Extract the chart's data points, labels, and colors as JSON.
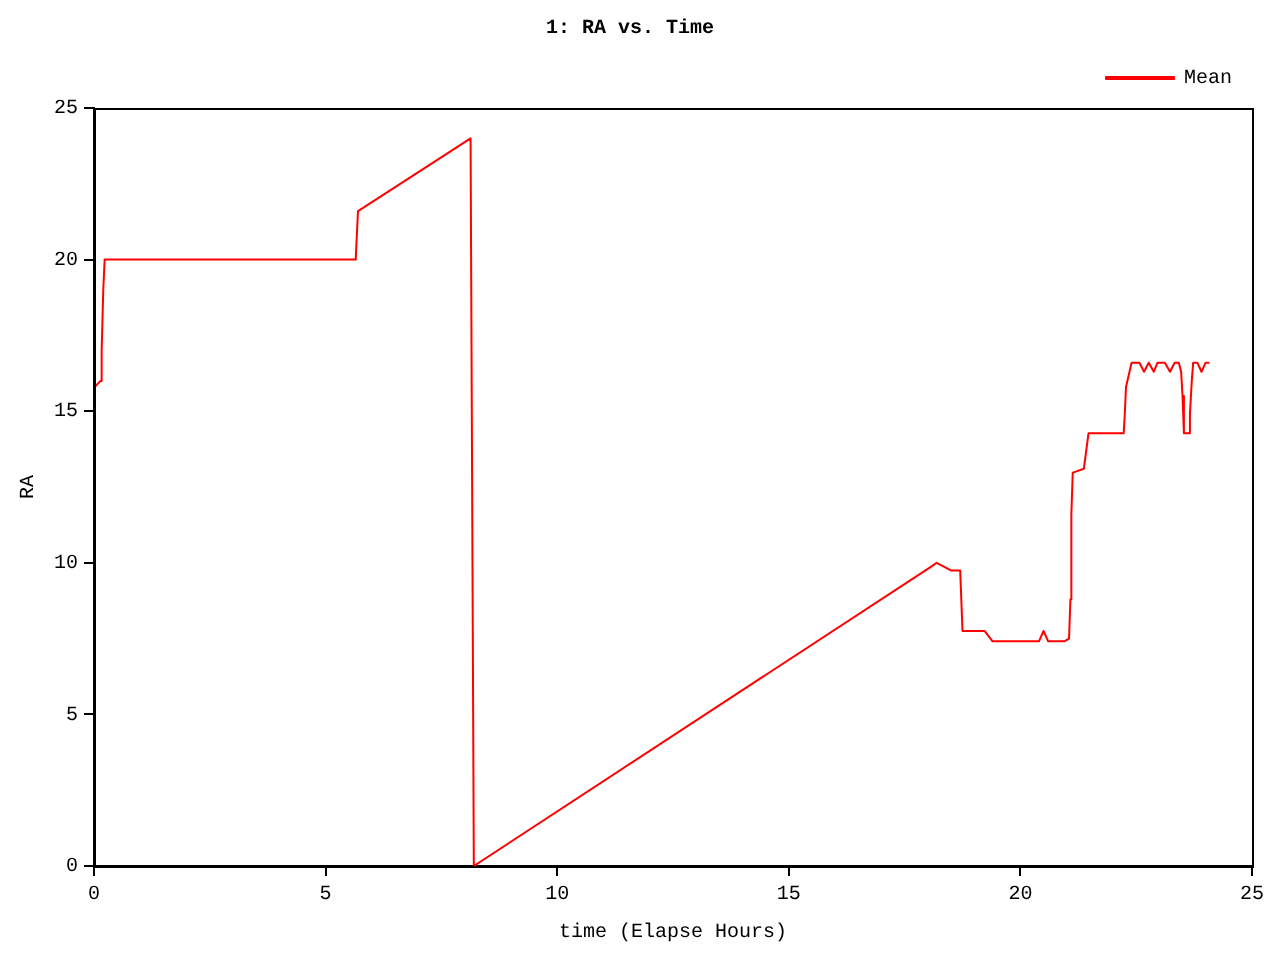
{
  "chart_data": {
    "type": "line",
    "title": "1: RA vs. Time",
    "xlabel": "time (Elapse Hours)",
    "ylabel": "RA",
    "xlim": [
      0,
      25
    ],
    "xticks": [
      0,
      5,
      10,
      15,
      20,
      25
    ],
    "ylim": [
      0,
      25
    ],
    "yticks": [
      0,
      5,
      10,
      15,
      20,
      25
    ],
    "legend": "top right",
    "marker": "none",
    "line_style": "solid",
    "series": [
      {
        "name": "Mean",
        "color": "#ff0000",
        "x": [
          0.02,
          0.14,
          0.16,
          0.17,
          0.2,
          0.23,
          5.65,
          5.68,
          5.7,
          8.13,
          8.2,
          18.1,
          18.19,
          18.5,
          18.7,
          18.75,
          19.23,
          19.4,
          20.4,
          20.5,
          20.6,
          20.95,
          21.05,
          21.08,
          21.1,
          21.13,
          21.18,
          21.37,
          21.47,
          22.23,
          22.25,
          22.28,
          22.4,
          22.57,
          22.67,
          22.77,
          22.88,
          22.96,
          23.12,
          23.23,
          23.33,
          23.42,
          23.47,
          23.5,
          23.53,
          23.62,
          23.66,
          23.7,
          23.73,
          23.82,
          23.91,
          24.0,
          24.08
        ],
        "values": [
          15.8,
          16.0,
          16.0,
          17.0,
          19.0,
          20.0,
          20.0,
          21.0,
          21.6,
          24.0,
          0.0,
          9.9,
          10.0,
          9.75,
          9.75,
          7.75,
          7.75,
          7.41,
          7.41,
          7.75,
          7.41,
          7.41,
          7.5,
          8.8,
          11.6,
          12.97,
          13.0,
          13.1,
          14.27,
          14.27,
          14.8,
          15.8,
          16.6,
          16.6,
          16.3,
          16.6,
          16.3,
          16.6,
          16.6,
          16.3,
          16.6,
          16.6,
          16.3,
          15.5,
          14.27,
          14.27,
          14.9,
          16.0,
          16.6,
          16.6,
          16.3,
          16.6,
          16.6
        ]
      }
    ]
  }
}
